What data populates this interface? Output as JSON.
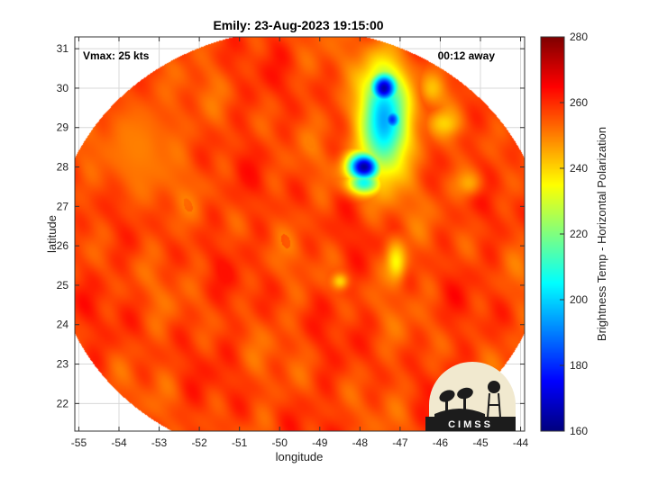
{
  "chart_data": {
    "type": "heatmap",
    "title": "Emily: 23-Aug-2023 19:15:00",
    "xlabel": "longitude",
    "ylabel": "latitude",
    "xlim": [
      -55.1,
      -43.9
    ],
    "ylim": [
      21.3,
      31.3
    ],
    "xticks": [
      -55,
      -54,
      -53,
      -52,
      -51,
      -50,
      -49,
      -48,
      -47,
      -46,
      -45,
      -44
    ],
    "yticks": [
      22,
      23,
      24,
      25,
      26,
      27,
      28,
      29,
      30,
      31
    ],
    "grid": true,
    "annotations": {
      "left": "Vmax: 25 kts",
      "right": "00:12 away"
    },
    "swath": {
      "shape": "circle",
      "center": [
        -49.5,
        26.0
      ],
      "radius_deg": 5.5
    },
    "background_value": 257,
    "features": [
      {
        "lon": -47.4,
        "lat": 29.2,
        "value": 195,
        "sx": 0.6,
        "sy": 1.4
      },
      {
        "lon": -47.4,
        "lat": 30.0,
        "value": 165,
        "sx": 0.35,
        "sy": 0.4
      },
      {
        "lon": -47.2,
        "lat": 29.2,
        "value": 180,
        "sx": 0.25,
        "sy": 0.3
      },
      {
        "lon": -47.9,
        "lat": 28.0,
        "value": 162,
        "sx": 0.4,
        "sy": 0.35
      },
      {
        "lon": -47.9,
        "lat": 27.6,
        "value": 205,
        "sx": 0.4,
        "sy": 0.3
      },
      {
        "lon": -47.1,
        "lat": 25.6,
        "value": 235,
        "sx": 0.25,
        "sy": 0.5
      },
      {
        "lon": -46.2,
        "lat": 30.0,
        "value": 242,
        "sx": 0.3,
        "sy": 0.4
      },
      {
        "lon": -45.9,
        "lat": 29.1,
        "value": 240,
        "sx": 0.35,
        "sy": 0.3
      },
      {
        "lon": -45.3,
        "lat": 27.6,
        "value": 245,
        "sx": 0.35,
        "sy": 0.35
      },
      {
        "lon": -48.5,
        "lat": 25.1,
        "value": 238,
        "sx": 0.2,
        "sy": 0.2
      },
      {
        "lon": -51.0,
        "lat": 26.0,
        "value": 263,
        "sx": 1.8,
        "sy": 2.0
      },
      {
        "lon": -53.5,
        "lat": 28.5,
        "value": 250,
        "sx": 1.0,
        "sy": 1.4
      }
    ],
    "colorbar": {
      "label": "Brightness Temp - Horizontal Polarization",
      "range": [
        160,
        280
      ],
      "ticks": [
        160,
        180,
        200,
        220,
        240,
        260,
        280
      ],
      "colormap": "jet"
    },
    "logo_text": "CIMSS"
  },
  "colors": {
    "grid": "#d8d8d8",
    "frame": "#333333",
    "logo_bg": "#f1e9cf",
    "logo_dark": "#1c1c1c"
  }
}
